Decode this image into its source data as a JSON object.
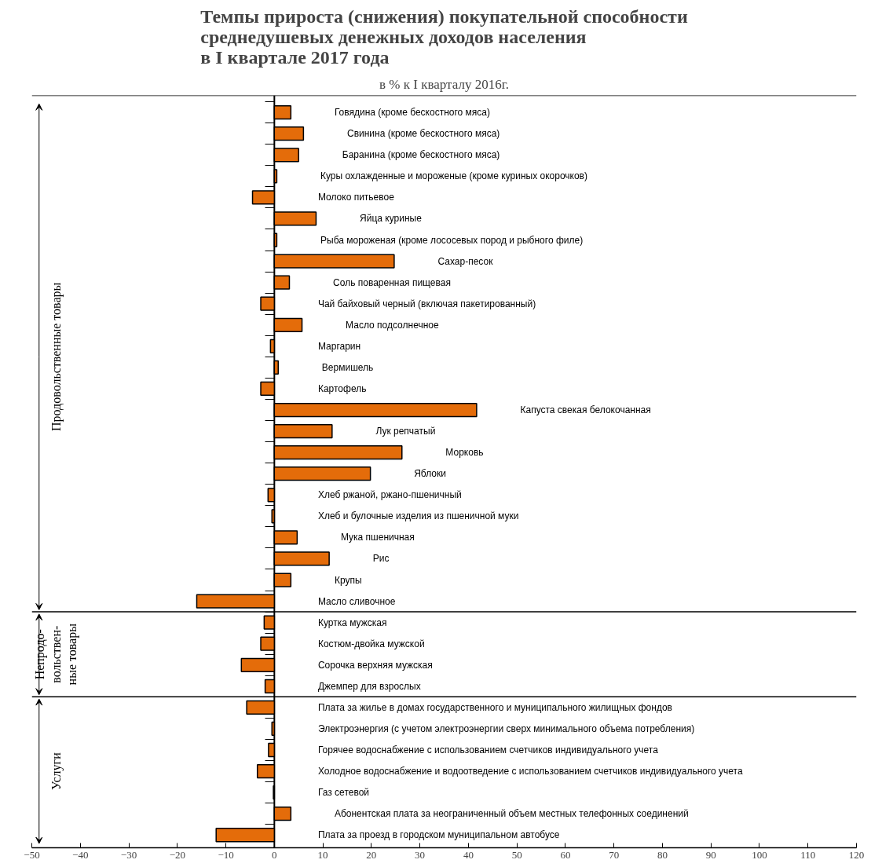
{
  "chart_data": {
    "type": "bar",
    "orientation": "horizontal",
    "title": "Темпы прироста (снижения) покупательной способности\nсреднедушевых денежных доходов населения\nв I квартале 2017 года",
    "subtitle": "в % к I кварталу 2016г.",
    "categories": [
      "Говядина (кроме бескостного мяса)",
      "Свинина (кроме бескостного мяса)",
      "Баранина (кроме бескостного мяса)",
      "Куры охлажденные и мороженые (кроме куриных окорочков)",
      "Молоко питьевое",
      "Яйца куриные",
      "Рыба мороженая (кроме лососевых пород и рыбного филе)",
      "Сахар-песок",
      "Соль поваренная пищевая",
      "Чай байховый черный  (включая пакетированный)",
      "Масло подсолнечное",
      "Маргарин",
      "Вермишель",
      "Картофель",
      "Капуста свекая белокочанная",
      "Лук репчатый",
      "Морковь",
      "Яблоки",
      "Хлеб ржаной, ржано-пшеничный",
      "Хлеб и булочные изделия из пшеничной муки",
      "Мука пшеничная",
      "Рис",
      "Крупы",
      "Масло сливочное",
      "Куртка мужская",
      "Костюм-двойка  мужской",
      "Сорочка верхняя мужская",
      "Джемпер для взрослых",
      "Плата за жилье в домах государственного и муниципального жилищных фондов",
      "Электроэнергия (с учетом электроэнергии сверх минимального объема потребления)",
      "Горячее водоснабжение с использованием счетчиков индивидуального учета",
      "Холодное водоснабжение и водоотведение с использованием счетчиков индивидуального учета",
      "Газ сетевой",
      "Абонентская плата за неограниченный объем местных телефонных соединений",
      "Плата за проезд в городском муниципальном автобусе"
    ],
    "values": [
      3.4,
      6.0,
      5.0,
      0.5,
      -4.5,
      8.6,
      0.5,
      24.7,
      3.1,
      -2.8,
      5.7,
      -0.8,
      0.8,
      -2.8,
      41.7,
      11.9,
      26.3,
      19.8,
      -1.3,
      -0.5,
      4.7,
      11.3,
      3.4,
      -16.0,
      -2.1,
      -2.8,
      -6.8,
      -1.9,
      -5.7,
      -0.5,
      -1.2,
      -3.5,
      -0.2,
      3.4,
      -12.0
    ],
    "color": "#e46c0a",
    "xlim": [
      -50,
      120
    ],
    "xticks": [
      -50,
      -40,
      -30,
      -20,
      -10,
      0,
      10,
      20,
      30,
      40,
      50,
      60,
      70,
      80,
      90,
      100,
      110,
      120
    ],
    "grid": false,
    "annotations": [
      "Продовольственные товары",
      "Непродо-\nвольствен-\nные товары",
      "Услуги"
    ]
  }
}
